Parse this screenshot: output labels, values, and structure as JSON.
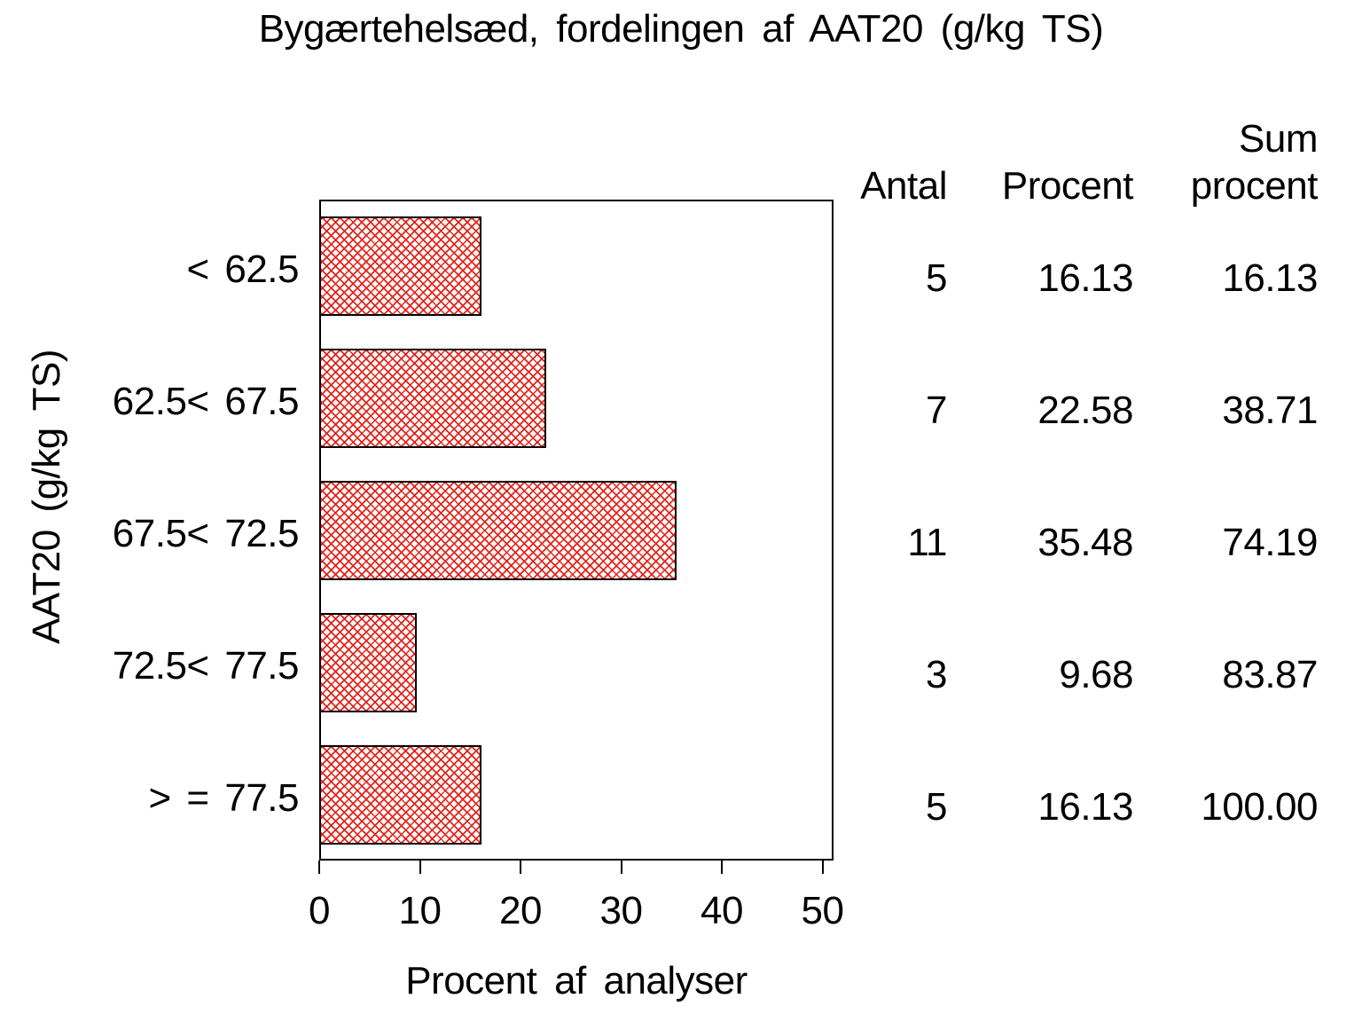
{
  "title": "Bygærtehelsæd, fordelingen af AAT20 (g/kg TS)",
  "axes": {
    "x_label": "Procent af analyser",
    "y_label": "AAT20 (g/kg TS)"
  },
  "table": {
    "col_antal": "Antal",
    "col_procent": "Procent",
    "col_sum_line1": "Sum",
    "col_sum_line2": "procent",
    "rows": [
      {
        "antal": "5",
        "procent": "16.13",
        "sum": "16.13"
      },
      {
        "antal": "7",
        "procent": "22.58",
        "sum": "38.71"
      },
      {
        "antal": "11",
        "procent": "35.48",
        "sum": "74.19"
      },
      {
        "antal": "3",
        "procent": "9.68",
        "sum": "83.87"
      },
      {
        "antal": "5",
        "procent": "16.13",
        "sum": "100.00"
      }
    ]
  },
  "chart_data": {
    "type": "bar",
    "orientation": "horizontal",
    "title": "Bygærtehelsæd, fordelingen af AAT20 (g/kg TS)",
    "categories": [
      "< 62.5",
      "62.5< 67.5",
      "67.5< 72.5",
      "72.5< 77.5",
      "> = 77.5"
    ],
    "series": [
      {
        "name": "Procent",
        "values": [
          16.13,
          22.58,
          35.48,
          9.68,
          16.13
        ]
      },
      {
        "name": "Antal",
        "values": [
          5,
          7,
          11,
          3,
          5
        ]
      },
      {
        "name": "Sum procent",
        "values": [
          16.13,
          38.71,
          74.19,
          83.87,
          100.0
        ]
      }
    ],
    "xlabel": "Procent af analyser",
    "ylabel": "AAT20 (g/kg TS)",
    "xlim": [
      0,
      50
    ],
    "x_ticks": [
      0,
      10,
      20,
      30,
      40,
      50
    ],
    "grid": false,
    "legend": false,
    "bar_fill": "crosshatch",
    "bar_hatch_color": "#e3241b",
    "bar_border_color": "#000000",
    "frame_color": "#000000",
    "text_color": "#000000",
    "background_color": "#ffffff"
  }
}
